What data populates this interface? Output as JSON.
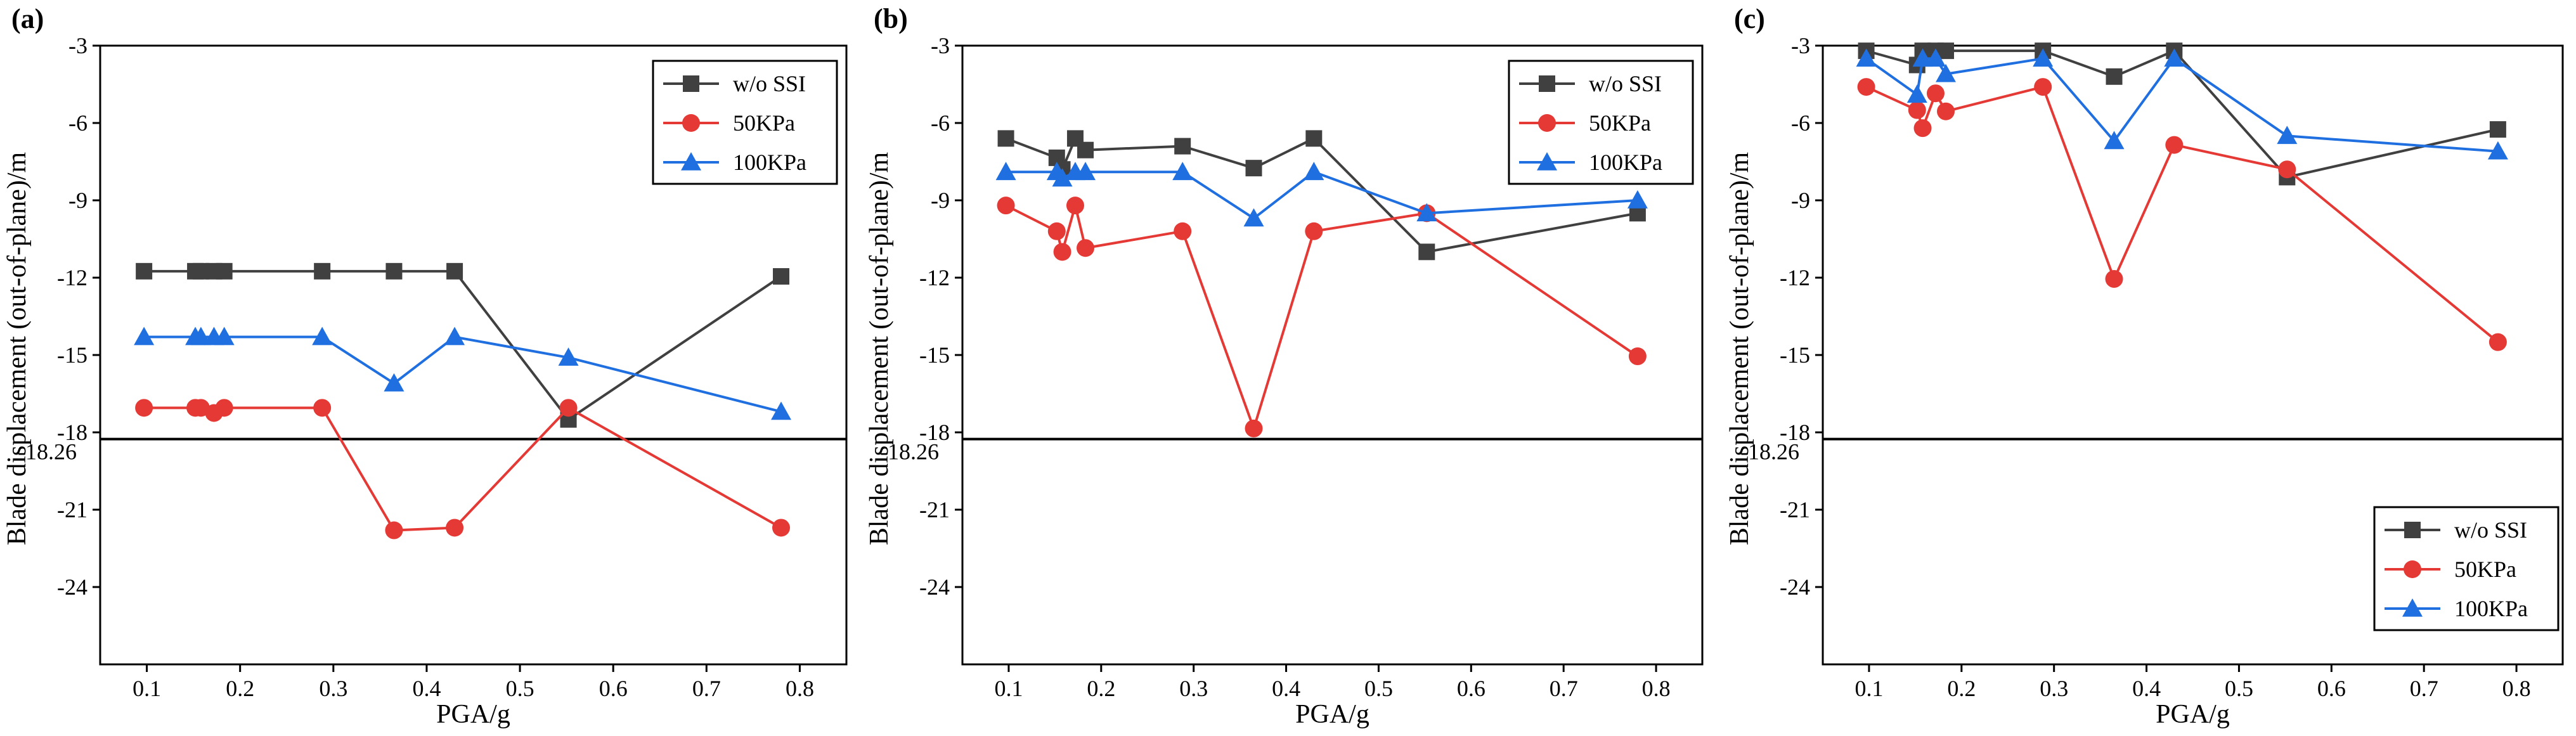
{
  "chart_data": [
    {
      "type": "line",
      "panel_label": "(a)",
      "xlabel": "PGA/g",
      "ylabel": "Blade displacement (out-of-plane)/m",
      "xlim": [
        0.05,
        0.85
      ],
      "ylim": [
        -27,
        -3
      ],
      "xticks": [
        0.1,
        0.2,
        0.3,
        0.4,
        0.5,
        0.6,
        0.7,
        0.8
      ],
      "xtick_labels": [
        "0.1",
        "0.2",
        "0.3",
        "0.4",
        "0.5",
        "0.6",
        "0.7",
        "0.8"
      ],
      "yticks": [
        -3,
        -6,
        -9,
        -12,
        -15,
        -18,
        -21,
        -24
      ],
      "ytick_labels": [
        "-3",
        "-6",
        "-9",
        "-12",
        "-15",
        "-18",
        "-21",
        "-24"
      ],
      "reference_line": {
        "y": -18.26,
        "label": "-18.26"
      },
      "legend_position": "top-right",
      "series": [
        {
          "name": "w/o SSI",
          "color": "#404040",
          "marker": "square",
          "x": [
            0.097,
            0.152,
            0.158,
            0.172,
            0.183,
            0.288,
            0.365,
            0.43,
            0.552,
            0.78
          ],
          "y": [
            -11.75,
            -11.75,
            -11.75,
            -11.75,
            -11.75,
            -11.75,
            -11.75,
            -11.75,
            -17.5,
            -11.95
          ]
        },
        {
          "name": "50KPa",
          "color": "#e53935",
          "marker": "circle",
          "x": [
            0.097,
            0.152,
            0.158,
            0.172,
            0.183,
            0.288,
            0.365,
            0.43,
            0.552,
            0.78
          ],
          "y": [
            -17.05,
            -17.05,
            -17.05,
            -17.25,
            -17.05,
            -17.05,
            -21.8,
            -21.7,
            -17.05,
            -21.7
          ]
        },
        {
          "name": "100KPa",
          "color": "#1f6fe0",
          "marker": "triangle",
          "x": [
            0.097,
            0.152,
            0.158,
            0.172,
            0.183,
            0.288,
            0.365,
            0.43,
            0.552,
            0.78
          ],
          "y": [
            -14.3,
            -14.3,
            -14.3,
            -14.3,
            -14.3,
            -14.3,
            -16.1,
            -14.3,
            -15.1,
            -17.2
          ]
        }
      ]
    },
    {
      "type": "line",
      "panel_label": "(b)",
      "xlabel": "PGA/g",
      "ylabel": "Blade displacement (out-of-plane)/m",
      "xlim": [
        0.05,
        0.85
      ],
      "ylim": [
        -27,
        -3
      ],
      "xticks": [
        0.1,
        0.2,
        0.3,
        0.4,
        0.5,
        0.6,
        0.7,
        0.8
      ],
      "xtick_labels": [
        "0.1",
        "0.2",
        "0.3",
        "0.4",
        "0.5",
        "0.6",
        "0.7",
        "0.8"
      ],
      "yticks": [
        -3,
        -6,
        -9,
        -12,
        -15,
        -18,
        -21,
        -24
      ],
      "ytick_labels": [
        "-3",
        "-6",
        "-9",
        "-12",
        "-15",
        "-18",
        "-21",
        "-24"
      ],
      "reference_line": {
        "y": -18.26,
        "label": "-18.26"
      },
      "legend_position": "top-right",
      "series": [
        {
          "name": "w/o SSI",
          "color": "#404040",
          "marker": "square",
          "x": [
            0.097,
            0.152,
            0.158,
            0.172,
            0.183,
            0.288,
            0.365,
            0.43,
            0.552,
            0.78
          ],
          "y": [
            -6.6,
            -7.35,
            -7.8,
            -6.6,
            -7.05,
            -6.9,
            -7.75,
            -6.6,
            -11.0,
            -9.5
          ]
        },
        {
          "name": "50KPa",
          "color": "#e53935",
          "marker": "circle",
          "x": [
            0.097,
            0.152,
            0.158,
            0.172,
            0.183,
            0.288,
            0.365,
            0.43,
            0.552,
            0.78
          ],
          "y": [
            -9.2,
            -10.2,
            -11.0,
            -9.2,
            -10.85,
            -10.2,
            -17.85,
            -10.2,
            -9.5,
            -15.05
          ]
        },
        {
          "name": "100KPa",
          "color": "#1f6fe0",
          "marker": "triangle",
          "x": [
            0.097,
            0.152,
            0.158,
            0.172,
            0.183,
            0.288,
            0.365,
            0.43,
            0.552,
            0.78
          ],
          "y": [
            -7.9,
            -7.9,
            -8.15,
            -7.9,
            -7.9,
            -7.9,
            -9.7,
            -7.9,
            -9.5,
            -9.0
          ]
        }
      ]
    },
    {
      "type": "line",
      "panel_label": "(c)",
      "xlabel": "PGA/g",
      "ylabel": "Blade displacement (out-of-plane)/m",
      "xlim": [
        0.05,
        0.85
      ],
      "ylim": [
        -27,
        -3
      ],
      "xticks": [
        0.1,
        0.2,
        0.3,
        0.4,
        0.5,
        0.6,
        0.7,
        0.8
      ],
      "xtick_labels": [
        "0.1",
        "0.2",
        "0.3",
        "0.4",
        "0.5",
        "0.6",
        "0.7",
        "0.8"
      ],
      "yticks": [
        -3,
        -6,
        -9,
        -12,
        -15,
        -18,
        -21,
        -24
      ],
      "ytick_labels": [
        "-3",
        "-6",
        "-9",
        "-12",
        "-15",
        "-18",
        "-21",
        "-24"
      ],
      "reference_line": {
        "y": -18.26,
        "label": "-18.26"
      },
      "legend_position": "bottom-right",
      "series": [
        {
          "name": "w/o SSI",
          "color": "#404040",
          "marker": "square",
          "x": [
            0.097,
            0.152,
            0.158,
            0.172,
            0.183,
            0.288,
            0.365,
            0.43,
            0.552,
            0.78
          ],
          "y": [
            -3.2,
            -3.75,
            -3.2,
            -3.2,
            -3.2,
            -3.2,
            -4.2,
            -3.2,
            -8.1,
            -6.25
          ]
        },
        {
          "name": "50KPa",
          "color": "#e53935",
          "marker": "circle",
          "x": [
            0.097,
            0.152,
            0.158,
            0.172,
            0.183,
            0.288,
            0.365,
            0.43,
            0.552,
            0.78
          ],
          "y": [
            -4.6,
            -5.5,
            -6.2,
            -4.85,
            -5.55,
            -4.6,
            -12.05,
            -6.85,
            -7.8,
            -14.5
          ]
        },
        {
          "name": "100KPa",
          "color": "#1f6fe0",
          "marker": "triangle",
          "x": [
            0.097,
            0.152,
            0.158,
            0.172,
            0.183,
            0.288,
            0.365,
            0.43,
            0.552,
            0.78
          ],
          "y": [
            -3.5,
            -4.9,
            -3.5,
            -3.5,
            -4.1,
            -3.5,
            -6.7,
            -3.5,
            -6.5,
            -7.1
          ]
        }
      ]
    }
  ]
}
